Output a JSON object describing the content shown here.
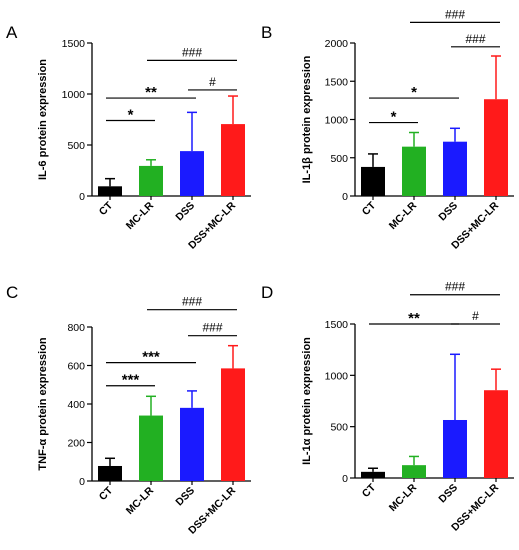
{
  "chart_data": [
    {
      "panel": "A",
      "type": "bar",
      "ylabel": "IL-6 protein expression",
      "categories": [
        "CT",
        "MC-LR",
        "DSS",
        "DSS+MC-LR"
      ],
      "values": [
        95,
        295,
        440,
        705
      ],
      "errors": [
        75,
        60,
        380,
        275
      ],
      "yticks": [
        0,
        500,
        1000,
        1500
      ],
      "ylim": [
        0,
        1500
      ],
      "significance": [
        {
          "from": 0,
          "to": 1,
          "label": "*",
          "y": 740
        },
        {
          "from": 0,
          "to": 2,
          "label": "**",
          "y": 960
        },
        {
          "from": 2,
          "to": 3,
          "label": "#",
          "y": 1040
        },
        {
          "from": 1,
          "to": 3,
          "label": "###",
          "y": 1330
        }
      ]
    },
    {
      "panel": "B",
      "type": "bar",
      "ylabel": "IL-1β protein expression",
      "categories": [
        "CT",
        "MC-LR",
        "DSS",
        "DSS+MC-LR"
      ],
      "values": [
        380,
        645,
        710,
        1265
      ],
      "errors": [
        170,
        185,
        175,
        565
      ],
      "yticks": [
        0,
        500,
        1000,
        1500,
        2000
      ],
      "ylim": [
        0,
        2000
      ],
      "significance": [
        {
          "from": 0,
          "to": 1,
          "label": "*",
          "y": 960
        },
        {
          "from": 0,
          "to": 2,
          "label": "*",
          "y": 1280
        },
        {
          "from": 2,
          "to": 3,
          "label": "###",
          "y": 1950
        },
        {
          "from": 1,
          "to": 3,
          "label": "###",
          "y": 2270
        }
      ]
    },
    {
      "panel": "C",
      "type": "bar",
      "ylabel": "TNF-α protein expression",
      "categories": [
        "CT",
        "MC-LR",
        "DSS",
        "DSS+MC-LR"
      ],
      "values": [
        78,
        340,
        380,
        585
      ],
      "errors": [
        40,
        100,
        88,
        118
      ],
      "yticks": [
        0,
        200,
        400,
        600,
        800
      ],
      "ylim": [
        0,
        800
      ],
      "significance": [
        {
          "from": 0,
          "to": 1,
          "label": "***",
          "y": 495
        },
        {
          "from": 0,
          "to": 2,
          "label": "***",
          "y": 615
        },
        {
          "from": 2,
          "to": 3,
          "label": "###",
          "y": 755
        },
        {
          "from": 1,
          "to": 3,
          "label": "###",
          "y": 890
        }
      ]
    },
    {
      "panel": "D",
      "type": "bar",
      "ylabel": "IL-1α protein expression",
      "categories": [
        "CT",
        "MC-LR",
        "DSS",
        "DSS+MC-LR"
      ],
      "values": [
        60,
        125,
        565,
        855
      ],
      "errors": [
        35,
        85,
        640,
        205
      ],
      "yticks": [
        0,
        500,
        1000,
        1500
      ],
      "ylim": [
        0,
        1500
      ],
      "significance": [
        {
          "from": 0,
          "to": 2,
          "label": "**",
          "y": 1500
        },
        {
          "from": 2,
          "to": 3,
          "label": "#",
          "y": 1500
        },
        {
          "from": 1,
          "to": 3,
          "label": "###",
          "y": 1785
        }
      ]
    }
  ],
  "bar_colors": [
    "#000000",
    "#22b022",
    "#1a1aff",
    "#ff1a1a"
  ]
}
